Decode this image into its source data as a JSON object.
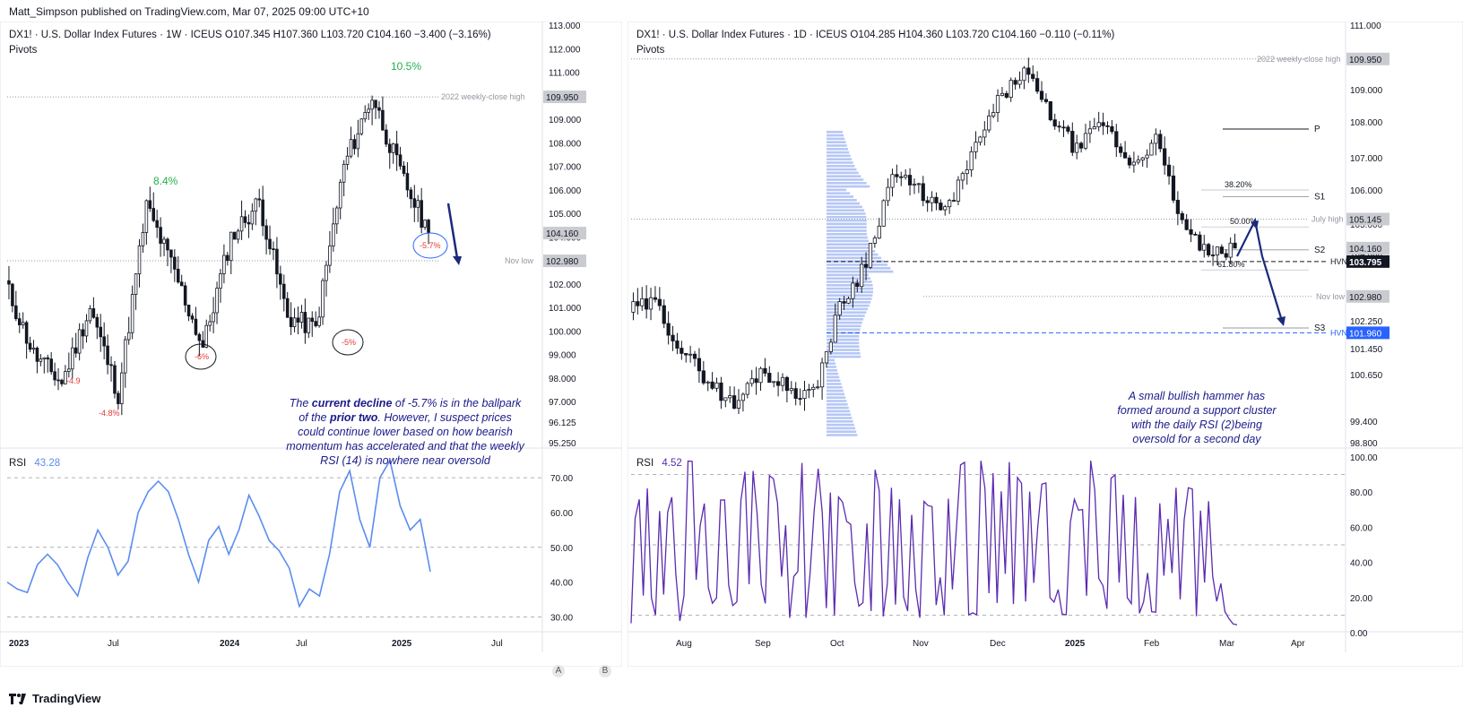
{
  "publisher": "Matt_Simpson published on TradingView.com, Mar 07, 2025 09:00 UTC+10",
  "footer_brand": "TradingView",
  "left": {
    "header": "DX1! · U.S. Dollar Index Futures · 1W · ICEUS  O107.345  H107.360  L103.720  C104.160  −3.400 (−3.16%)",
    "indicator": "Pivots",
    "price_axis": [
      "113.000",
      "112.000",
      "111.000",
      "110.000",
      "109.000",
      "108.000",
      "107.000",
      "106.000",
      "105.000",
      "104.000",
      "103.000",
      "102.000",
      "101.000",
      "100.000",
      "99.000",
      "98.000",
      "97.000",
      "96.125",
      "95.250"
    ],
    "price_tags": [
      {
        "label": "109.950",
        "color": "#c9cbd1",
        "text": "#131722"
      },
      {
        "label": "104.160",
        "color": "#c9cbd1",
        "text": "#131722"
      },
      {
        "label": "102.980",
        "color": "#c9cbd1",
        "text": "#131722"
      }
    ],
    "line_labels": [
      "2022 weekly-close high",
      "Nov low"
    ],
    "annotations": {
      "up1": "8.4%",
      "up2": "10.5%",
      "dn1": "-4.9",
      "dn2": "-4.8%",
      "dn3": "-6%",
      "dn4": "-5%",
      "dn5": "-5.7%"
    },
    "time_axis": [
      "2023",
      "Jul",
      "2024",
      "Jul",
      "2025",
      "Jul"
    ],
    "rsi_label": "RSI",
    "rsi_value": "43.28",
    "rsi_axis": [
      "70.00",
      "60.00",
      "50.00",
      "40.00",
      "30.00"
    ],
    "note_lines": [
      "The current decline of -5.7% is in the ballpark",
      "of the prior two. However, I suspect prices",
      "could continue lower based on how bearish",
      "momentum has accelerated and that the weekly",
      "RSI (14) is nowhere near oversold"
    ],
    "buttons": [
      "A",
      "B"
    ]
  },
  "right": {
    "header": "DX1! · U.S. Dollar Index Futures · 1D · ICEUS  O104.285  H104.360  L103.720  C104.160  −0.110 (−0.11%)",
    "indicator": "Pivots",
    "price_axis": [
      "111.000",
      "109.000",
      "108.000",
      "107.000",
      "106.000",
      "105.000",
      "104.000",
      "103.000",
      "102.000",
      "102.250",
      "101.450",
      "100.650",
      "99.400",
      "98.800"
    ],
    "price_tags": [
      {
        "label": "109.950",
        "color": "#c9cbd1",
        "text": "#131722"
      },
      {
        "label": "105.145",
        "color": "#c9cbd1",
        "text": "#131722"
      },
      {
        "label": "104.160",
        "color": "#c9cbd1",
        "text": "#131722"
      },
      {
        "label": "103.795",
        "color": "#131722",
        "text": "#ffffff"
      },
      {
        "label": "102.980",
        "color": "#c9cbd1",
        "text": "#131722"
      },
      {
        "label": "101.960",
        "color": "#2962ff",
        "text": "#ffffff"
      }
    ],
    "line_labels": [
      "2022 weekly-close high",
      "July high",
      "Nov low",
      "HVN",
      "HVN"
    ],
    "pivot_labels": [
      "P",
      "S1",
      "S2",
      "S3"
    ],
    "fib_labels": [
      "38.20%",
      "50.00%",
      "61.80%"
    ],
    "time_axis": [
      "Aug",
      "Sep",
      "Oct",
      "Nov",
      "Dec",
      "2025",
      "Feb",
      "Mar",
      "Apr"
    ],
    "rsi_label": "RSI",
    "rsi_value": "4.52",
    "rsi_axis": [
      "100.00",
      "80.00",
      "60.00",
      "40.00",
      "20.00",
      "0.00"
    ],
    "note_lines": [
      "A small bullish hammer has",
      "formed around a support cluster",
      "with the daily RSI (2)being",
      "oversold for a second day"
    ]
  },
  "chart_data": [
    {
      "type": "candlestick",
      "title": "DX1! · U.S. Dollar Index Futures · 1W · ICEUS",
      "ylim": [
        95.25,
        113.0
      ],
      "x": [
        "2023",
        "Jul",
        "2024",
        "Jul",
        "2025",
        "Jul"
      ],
      "swing_points": [
        {
          "label": "-4.9",
          "value": 98.0
        },
        {
          "label": "-4.8%",
          "value": 97.2
        },
        {
          "label": "8.4%",
          "value": 105.3
        },
        {
          "label": "-6%",
          "value": 99.2
        },
        {
          "label": "-5%",
          "value": 100.2
        },
        {
          "label": "10.5%",
          "value": 110.0
        },
        {
          "label": "-5.7%",
          "value": 103.7
        }
      ],
      "levels": [
        {
          "name": "2022 weekly-close high",
          "value": 109.95
        },
        {
          "name": "Nov low",
          "value": 102.98
        }
      ],
      "last_close": 104.16,
      "rsi": {
        "period": 14,
        "value": 43.28,
        "ylim": [
          27,
          77
        ],
        "approx_path": [
          40,
          38,
          37,
          45,
          48,
          45,
          40,
          36,
          47,
          55,
          50,
          42,
          46,
          60,
          66,
          69,
          66,
          58,
          48,
          40,
          52,
          56,
          48,
          55,
          65,
          59,
          52,
          49,
          44,
          33,
          38,
          36,
          48,
          66,
          72,
          58,
          50,
          70,
          75,
          62,
          55,
          58,
          43
        ]
      }
    },
    {
      "type": "candlestick",
      "title": "DX1! · U.S. Dollar Index Futures · 1D · ICEUS",
      "ylim": [
        98.8,
        111.0
      ],
      "x": [
        "Aug",
        "Sep",
        "Oct",
        "Nov",
        "Dec",
        "2025",
        "Feb",
        "Mar",
        "Apr"
      ],
      "levels": [
        {
          "name": "2022 weekly-close high",
          "value": 109.95
        },
        {
          "name": "July high",
          "value": 105.145
        },
        {
          "name": "Nov low",
          "value": 102.98
        },
        {
          "name": "HVN",
          "value": 103.795
        },
        {
          "name": "HVN",
          "value": 101.96
        }
      ],
      "pivots": {
        "P": 107.8,
        "S1": 105.8,
        "S2": 104.1,
        "S3": 102.1
      },
      "fib": {
        "38.20%": 106.0,
        "50.00%": 104.9,
        "61.80%": 103.6
      },
      "last_close": 104.16,
      "rsi": {
        "period": 2,
        "value": 4.52,
        "ylim": [
          0,
          100
        ],
        "levels": [
          10,
          50,
          90
        ]
      }
    }
  ],
  "colors": {
    "up": "#ffffff",
    "down": "#131722",
    "rsi_left": "#5b8def",
    "rsi_right": "#5b2bb0",
    "arrow": "#1b2a7a",
    "volume_profile": "#9db4f3",
    "green": "#22b14c",
    "red": "#e53935",
    "grid": "#9598a1"
  }
}
